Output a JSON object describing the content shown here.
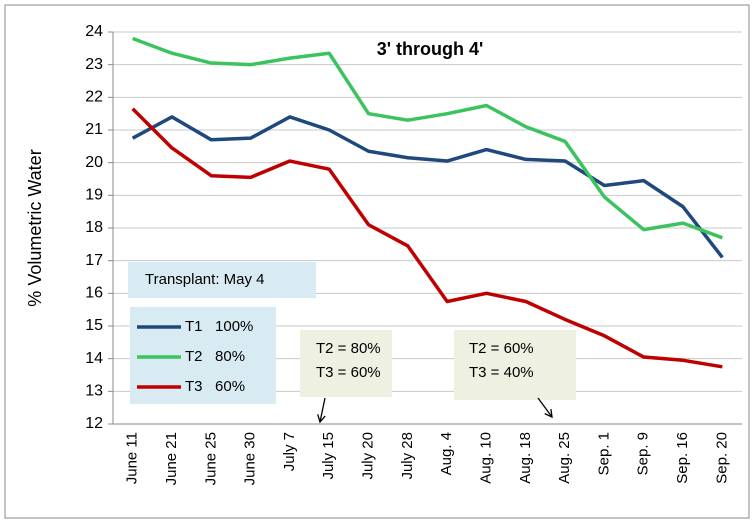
{
  "chart_data": {
    "type": "line",
    "title": "3' through 4'",
    "y_label": "% Volumetric Water",
    "categories": [
      "June 11",
      "June 21",
      "June 25",
      "June 30",
      "July 7",
      "July 15",
      "July 20",
      "July 28",
      "Aug. 4",
      "Aug. 10",
      "Aug. 18",
      "Aug. 25",
      "Sep. 1",
      "Sep. 9",
      "Sep. 16",
      "Sep. 20"
    ],
    "series": [
      {
        "name": "T1   100%",
        "color": "#1f497d",
        "values": [
          20.75,
          21.4,
          20.7,
          20.75,
          21.4,
          21.0,
          20.35,
          20.15,
          20.05,
          20.4,
          20.1,
          20.05,
          19.3,
          19.45,
          18.65,
          17.1
        ]
      },
      {
        "name": "T2   80%",
        "color": "#3cc35f",
        "values": [
          23.8,
          23.35,
          23.05,
          23.0,
          23.2,
          23.35,
          21.5,
          21.3,
          21.5,
          21.75,
          21.1,
          20.65,
          18.95,
          17.95,
          18.15,
          17.7
        ]
      },
      {
        "name": "T3   60%",
        "color": "#c00000",
        "values": [
          21.65,
          20.45,
          19.6,
          19.55,
          20.05,
          19.8,
          18.1,
          17.45,
          15.75,
          16.0,
          15.75,
          15.2,
          14.7,
          14.05,
          13.95,
          13.75
        ]
      }
    ],
    "ylim": [
      12,
      24
    ],
    "yticks": [
      12,
      13,
      14,
      15,
      16,
      17,
      18,
      19,
      20,
      21,
      22,
      23,
      24
    ],
    "grid": true,
    "transplant_note": "Transplant: May 4",
    "notes": [
      [
        "T2 = 80%",
        "T3 = 60%"
      ],
      [
        "T2 = 60%",
        "T3 = 40%"
      ]
    ]
  }
}
